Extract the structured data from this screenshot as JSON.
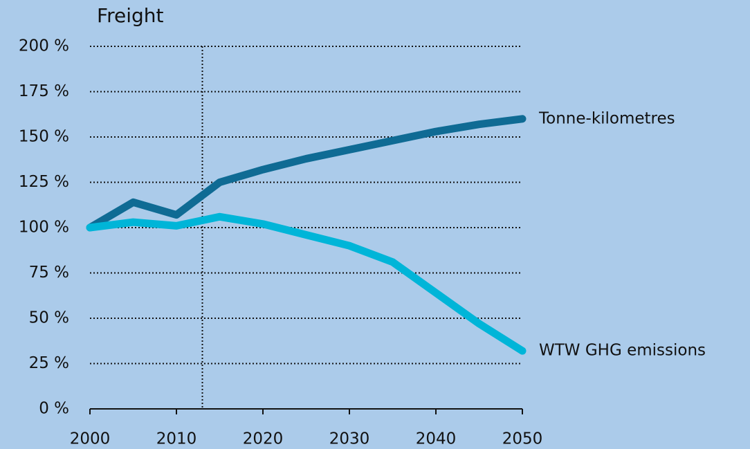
{
  "chart_data": {
    "type": "line",
    "title": "Freight",
    "x": [
      2000,
      2005,
      2010,
      2015,
      2020,
      2025,
      2030,
      2035,
      2040,
      2045,
      2050
    ],
    "series": [
      {
        "name": "Tonne-kilometres",
        "color": "#0f6b94",
        "values": [
          100,
          114,
          107,
          125,
          132,
          138,
          143,
          148,
          153,
          157,
          160
        ]
      },
      {
        "name": "WTW GHG emissions",
        "color": "#00b5d8",
        "values": [
          100,
          103,
          101,
          106,
          102,
          96,
          90,
          81,
          64,
          47,
          32
        ]
      }
    ],
    "xlim": [
      2000,
      2050
    ],
    "xticks": [
      2000,
      2010,
      2020,
      2030,
      2040,
      2050
    ],
    "ylim": [
      0,
      200
    ],
    "yticks": [
      {
        "value": 0,
        "label": "0 %"
      },
      {
        "value": 25,
        "label": "25 %"
      },
      {
        "value": 50,
        "label": "50 %"
      },
      {
        "value": 75,
        "label": "75 %"
      },
      {
        "value": 100,
        "label": "100 %"
      },
      {
        "value": 125,
        "label": "125 %"
      },
      {
        "value": 150,
        "label": "150 %"
      },
      {
        "value": 175,
        "label": "175 %"
      },
      {
        "value": 200,
        "label": "200 %"
      }
    ],
    "vline_x": 2013,
    "grid": true
  }
}
